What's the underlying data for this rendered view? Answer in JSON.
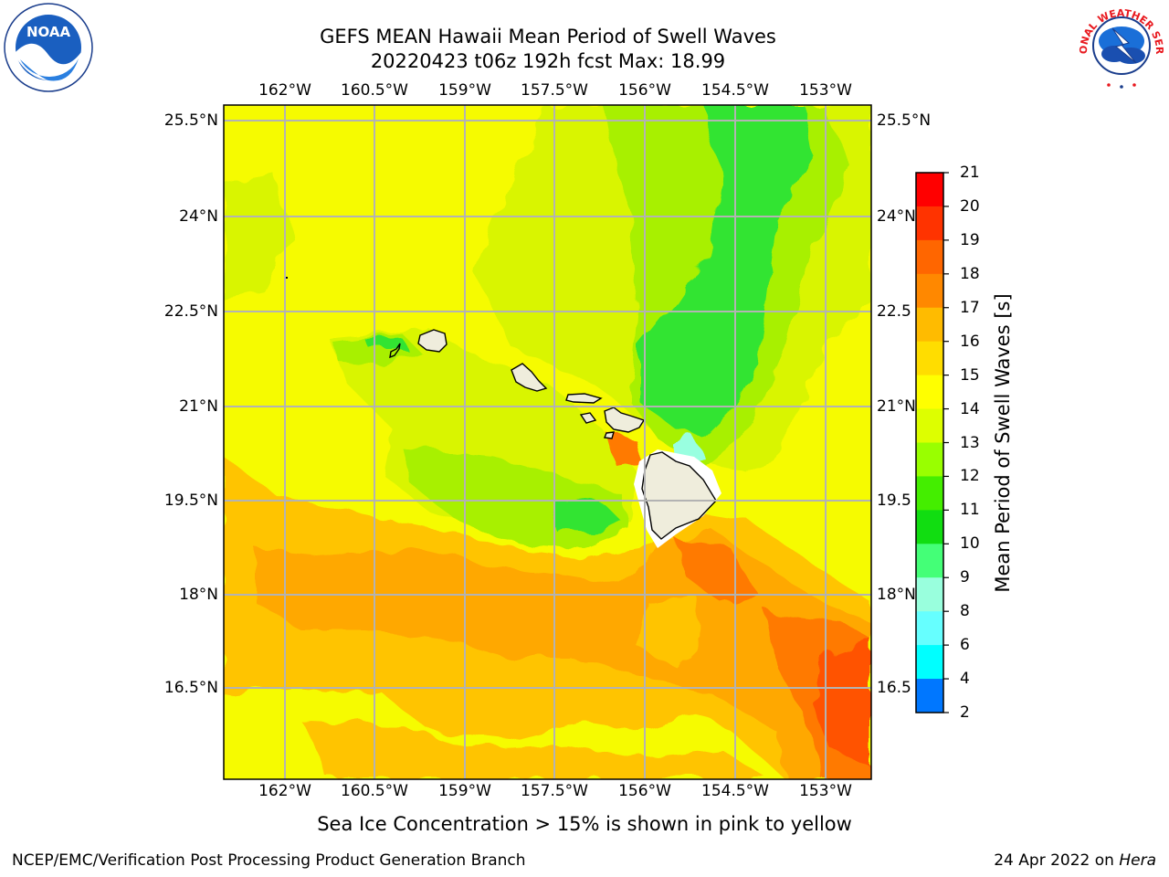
{
  "title": {
    "line1": "GEFS MEAN Hawaii Mean Period of Swell Waves",
    "line2": "20220423 t06z 192h fcst   Max: 18.99"
  },
  "axes": {
    "lon_ticks": [
      "162°W",
      "160.5°W",
      "159°W",
      "157.5°W",
      "156°W",
      "154.5°W",
      "153°W"
    ],
    "lat_ticks": [
      "25.5°N",
      "24°N",
      "22.5°N",
      "21°N",
      "19.5°N",
      "18°N",
      "16.5°N"
    ],
    "lat_ticks_right": [
      "25.5°N",
      "24°N",
      "22.5",
      "21°N",
      "19.5",
      "18°N",
      "16.5"
    ]
  },
  "colorbar": {
    "title": "Mean Period of Swell Waves [s]",
    "levels": [
      "21",
      "20",
      "19",
      "18",
      "17",
      "16",
      "15",
      "14",
      "13",
      "12",
      "11",
      "10",
      "9",
      "8",
      "6",
      "4",
      "2"
    ],
    "colors": [
      "#ff0000",
      "#ff3300",
      "#ff6600",
      "#ff8800",
      "#ffbb00",
      "#ffdd00",
      "#ffff00",
      "#ddff00",
      "#99ff00",
      "#44ee00",
      "#11dd11",
      "#44ff77",
      "#99ffdd",
      "#66ffff",
      "#00ffff",
      "#0077ff",
      "#0000ff"
    ]
  },
  "map_colors": {
    "base": "#f6fb00",
    "zone_yellowgreen": "#d9f500",
    "zone_lightgreen": "#a8f000",
    "zone_green": "#33e433",
    "zone_orange": "#ffa800",
    "zone_lightorange": "#ffc400",
    "zone_darkorange": "#ff7a00",
    "zone_red": "#ff5200",
    "zone_cyan": "#99ffe0",
    "land": "#efeddc",
    "grid": "#b3b3b3"
  },
  "logos": {
    "noaa_text": "NOAA",
    "nws_text": "NATIONAL WEATHER SERVICE"
  },
  "footnote": "Sea Ice Concentration > 15% is shown in pink to yellow",
  "credit_left": "NCEP/EMC/Verification Post Processing Product Generation Branch",
  "credit_right_prefix": "24 Apr 2022 on ",
  "credit_right_host": "Hera"
}
